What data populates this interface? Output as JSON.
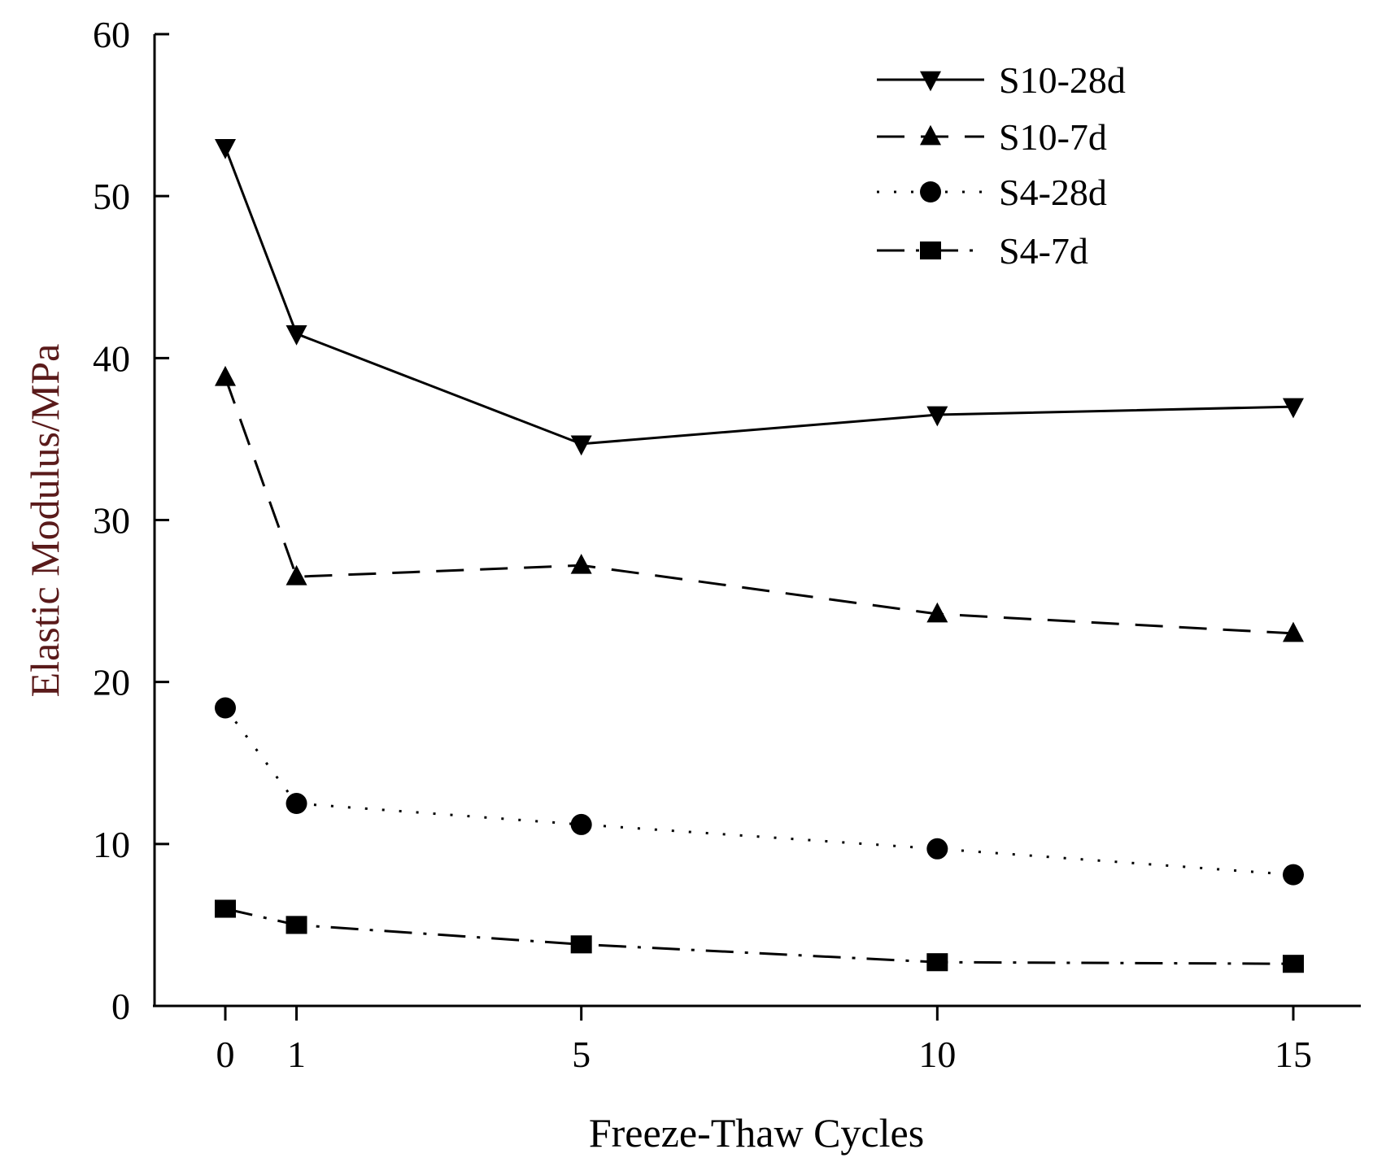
{
  "chart_data": {
    "type": "line",
    "title": "",
    "xlabel": "Freeze-Thaw Cycles",
    "ylabel": "Elastic Modulus/MPa",
    "x": [
      0,
      1,
      5,
      10,
      15
    ],
    "xlim": [
      -1,
      16
    ],
    "ylim": [
      0,
      60
    ],
    "x_ticks": [
      "0",
      "1",
      "5",
      "10",
      "15"
    ],
    "y_ticks": [
      "0",
      "10",
      "20",
      "30",
      "40",
      "50",
      "60"
    ],
    "grid": false,
    "legend_position": "top-right",
    "series": [
      {
        "name": "S10-28d",
        "marker": "triangle-down",
        "line": "solid",
        "values": [
          53,
          41.5,
          34.7,
          36.5,
          37
        ]
      },
      {
        "name": "S10-7d",
        "marker": "triangle-up",
        "line": "dashed",
        "values": [
          38.8,
          26.5,
          27.2,
          24.2,
          23
        ]
      },
      {
        "name": "S4-28d",
        "marker": "circle",
        "line": "dotted",
        "values": [
          18.4,
          12.5,
          11.2,
          9.7,
          8.1
        ]
      },
      {
        "name": "S4-7d",
        "marker": "square",
        "line": "dashdot",
        "values": [
          6,
          5,
          3.8,
          2.7,
          2.6
        ]
      }
    ],
    "colors": {
      "axis": "#000000",
      "series": "#000000",
      "ylabel": "#5a1a1a"
    }
  }
}
